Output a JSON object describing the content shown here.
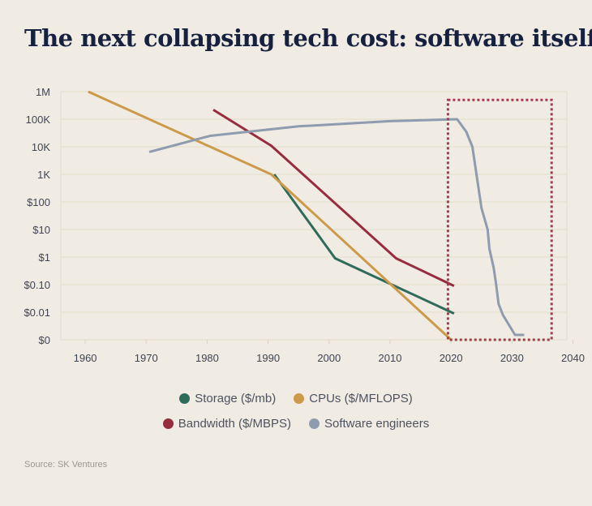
{
  "chart_data": {
    "type": "line",
    "title": "The next collapsing tech cost: software itself",
    "y_scale": "log",
    "ylim": [
      0.001,
      1000000
    ],
    "xlim": [
      1956,
      2039
    ],
    "x_ticks": [
      1960,
      1970,
      1980,
      1990,
      2000,
      2010,
      2020,
      2030,
      2040
    ],
    "y_ticks": [
      {
        "value": 1000000,
        "label": "1M"
      },
      {
        "value": 100000,
        "label": "100K"
      },
      {
        "value": 10000,
        "label": "10K"
      },
      {
        "value": 1000,
        "label": "1K"
      },
      {
        "value": 100,
        "label": "$100"
      },
      {
        "value": 10,
        "label": "$10"
      },
      {
        "value": 1,
        "label": "$1"
      },
      {
        "value": 0.1,
        "label": "$0.10"
      },
      {
        "value": 0.01,
        "label": "$0.01"
      },
      {
        "value": 0.001,
        "label": "$0"
      }
    ],
    "grid": true,
    "legend_placement": "bottom",
    "series": [
      {
        "name": "Storage ($/mb)",
        "color": "#2e6b5a",
        "points": [
          [
            1991,
            1000
          ],
          [
            2001,
            0.9
          ],
          [
            2020.5,
            0.009
          ]
        ]
      },
      {
        "name": "CPUs ($/MFLOPS)",
        "color": "#cc9a4a",
        "points": [
          [
            1960.5,
            1000000
          ],
          [
            1990.5,
            1000
          ],
          [
            2020,
            0.001
          ]
        ]
      },
      {
        "name": "Bandwidth ($/MBPS)",
        "color": "#982c3f",
        "points": [
          [
            1981,
            220000
          ],
          [
            1990.5,
            11000
          ],
          [
            2011,
            0.9
          ],
          [
            2020.5,
            0.09
          ]
        ]
      },
      {
        "name": "Software engineers",
        "color": "#8f9bae",
        "points": [
          [
            1970.5,
            6500
          ],
          [
            1980.5,
            25000
          ],
          [
            1995,
            55000
          ],
          [
            2010,
            85000
          ],
          [
            2021,
            100000
          ],
          [
            2022.5,
            35000
          ],
          [
            2023.5,
            10000
          ],
          [
            2025,
            60
          ],
          [
            2026,
            10
          ],
          [
            2026.3,
            2
          ],
          [
            2027,
            0.4
          ],
          [
            2027.4,
            0.1
          ],
          [
            2027.8,
            0.02
          ],
          [
            2028.5,
            0.008
          ],
          [
            2030.5,
            0.0015
          ],
          [
            2032,
            0.0015
          ]
        ]
      }
    ],
    "annotation_box": {
      "x_range": [
        2019.5,
        2036.5
      ],
      "y_range": [
        0.001,
        500000
      ],
      "color": "#a53a4e",
      "style": "dotted"
    }
  },
  "legend": {
    "row1": [
      "Storage ($/mb)",
      "CPUs ($/MFLOPS)"
    ],
    "row2": [
      "Bandwidth ($/MBPS)",
      "Software engineers"
    ]
  },
  "source": "Source: SK Ventures"
}
